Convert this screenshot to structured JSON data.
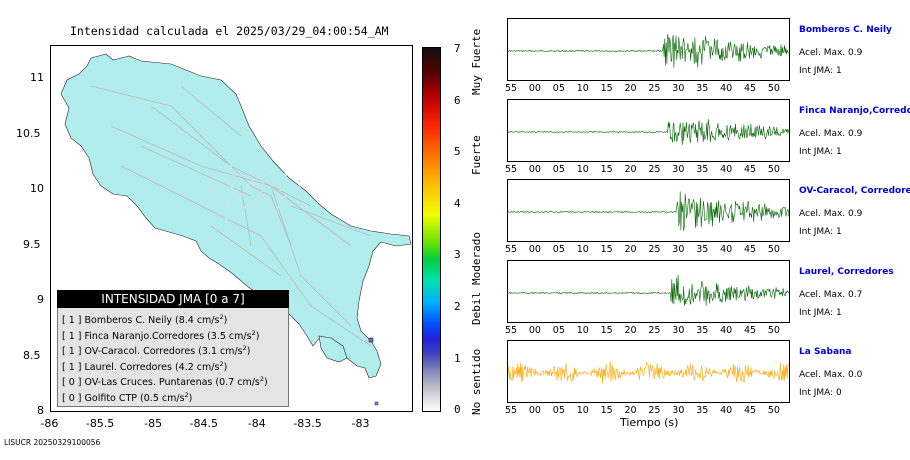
{
  "title": "Intensidad calculada el 2025/03/29_04:00:54_AM",
  "map": {
    "x_ticks": [
      "-86",
      "-85.5",
      "-85",
      "-84.5",
      "-84",
      "-83.5",
      "-83"
    ],
    "y_ticks": [
      "11",
      "10.5",
      "10",
      "9.5",
      "9",
      "8.5",
      "8"
    ],
    "land_color": "#b2eded",
    "road_color": "#b8b8b8",
    "legend": {
      "header": "INTENSIDAD JMA [0 a 7]",
      "rows": [
        {
          "text": "[ 1 ]  Bomberos C. Neily (8.4 cm/s",
          "sup": "2",
          "tail": ")"
        },
        {
          "text": "[ 1 ]  Finca Naranjo.Corredores (3.5 cm/s",
          "sup": "2",
          "tail": ")"
        },
        {
          "text": "[ 1 ]  OV-Caracol. Corredores (3.1 cm/s",
          "sup": "2",
          "tail": ")"
        },
        {
          "text": "[ 1 ]  Laurel. Corredores (4.2 cm/s",
          "sup": "2",
          "tail": ")"
        },
        {
          "text": "[ 0 ]  OV-Las Cruces. Puntarenas (0.7 cm/s",
          "sup": "2",
          "tail": ")"
        },
        {
          "text": "[ 0 ]  Golfito CTP (0.5 cm/s",
          "sup": "2",
          "tail": ")"
        }
      ]
    }
  },
  "colorbar": {
    "ticks": [
      "7",
      "6",
      "5",
      "4",
      "3",
      "2",
      "1",
      "0"
    ],
    "words": [
      "Muy Fuerte",
      "Fuerte",
      "Moderado",
      "Debil",
      "No sentido"
    ]
  },
  "traces": {
    "tick_labels": [
      "55",
      "00",
      "05",
      "10",
      "15",
      "20",
      "25",
      "30",
      "35",
      "40",
      "45",
      "50"
    ],
    "xlabel": "Tiempo (s)",
    "stations": [
      {
        "name": "Bomberos C. Neily",
        "acel": "Acel. Max. 0.9",
        "int": "Int JMA: 1",
        "color": "#006400",
        "onset": 0.55,
        "amp": 1.0
      },
      {
        "name": "Finca Naranjo,Corredores",
        "acel": "Acel. Max. 0.9",
        "int": "Int JMA: 1",
        "color": "#006400",
        "onset": 0.57,
        "amp": 0.8
      },
      {
        "name": "OV-Caracol, Corredores",
        "acel": "Acel. Max. 0.9",
        "int": "Int JMA: 1",
        "color": "#006400",
        "onset": 0.6,
        "amp": 0.95
      },
      {
        "name": "Laurel, Corredores",
        "acel": "Acel. Max. 0.7",
        "int": "Int JMA: 1",
        "color": "#006400",
        "onset": 0.58,
        "amp": 0.8
      },
      {
        "name": "La Sabana",
        "acel": "Acel. Max. 0.0",
        "int": "Int JMA: 0",
        "color": "#ffa500",
        "onset": 0.0,
        "amp": 0.75
      }
    ]
  },
  "footer": "LISUCR 20250329100056"
}
